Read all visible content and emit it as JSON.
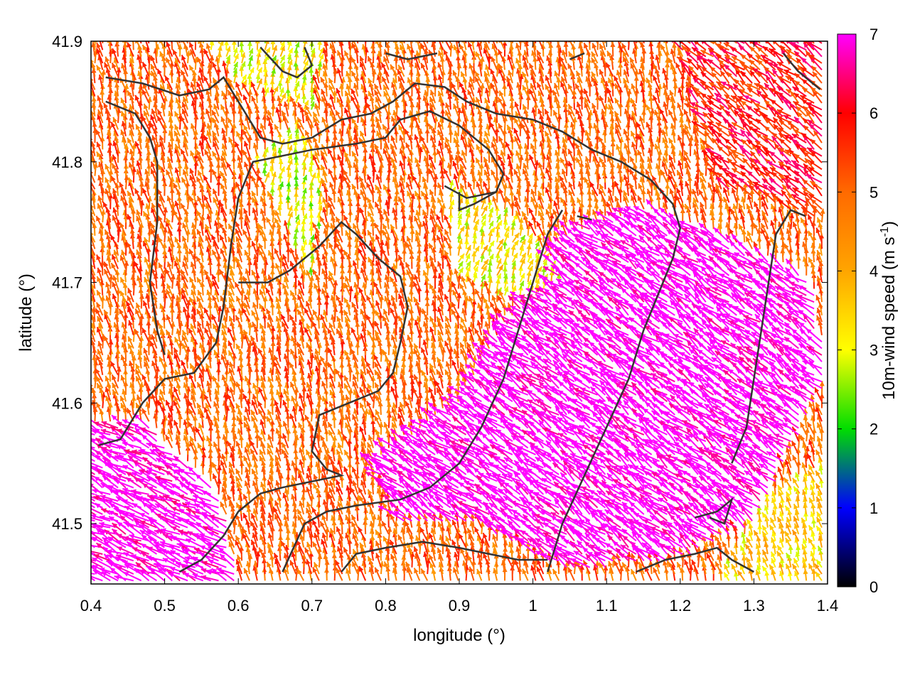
{
  "chart_data": {
    "type": "vector-field",
    "title": "",
    "xlabel": "longitude (°)",
    "ylabel": "latitude (°)",
    "colorbar_label": "10m-wind speed (m s-1)",
    "colorbar_label_parts": {
      "main": "10m-wind speed (m s",
      "sup": "-1",
      "tail": ")"
    },
    "xlim": [
      0.4,
      1.4
    ],
    "ylim": [
      41.45,
      41.9
    ],
    "colorbar_range": [
      0,
      7
    ],
    "x_ticks": [
      0.4,
      0.5,
      0.6,
      0.7,
      0.8,
      0.9,
      1.0,
      1.1,
      1.2,
      1.3,
      1.4
    ],
    "x_tick_labels": [
      "0.4",
      "0.5",
      "0.6",
      "0.7",
      "0.8",
      "0.9",
      "1",
      "1.1",
      "1.2",
      "1.3",
      "1.4"
    ],
    "y_ticks": [
      41.5,
      41.6,
      41.7,
      41.8,
      41.9
    ],
    "y_tick_labels": [
      "41.5",
      "41.6",
      "41.7",
      "41.8",
      "41.9"
    ],
    "colorbar_ticks": [
      0,
      1,
      2,
      3,
      4,
      5,
      6,
      7
    ],
    "colorbar_tick_labels": [
      "0",
      "1",
      "2",
      "3",
      "4",
      "5",
      "6",
      "7"
    ],
    "colormap": [
      {
        "value": 0,
        "color": "#000000"
      },
      {
        "value": 1,
        "color": "#0000ff"
      },
      {
        "value": 2,
        "color": "#00dd00"
      },
      {
        "value": 3,
        "color": "#ffff00"
      },
      {
        "value": 4,
        "color": "#ffa500"
      },
      {
        "value": 5,
        "color": "#ff6a00"
      },
      {
        "value": 6,
        "color": "#ff0000"
      },
      {
        "value": 7,
        "color": "#ff00ff"
      }
    ],
    "speed_regions": [
      {
        "name": "west-coast-strong",
        "points": [
          [
            0.4,
            41.45
          ],
          [
            0.6,
            41.45
          ],
          [
            0.58,
            41.52
          ],
          [
            0.48,
            41.58
          ],
          [
            0.4,
            41.58
          ]
        ],
        "speed": 7.2,
        "dir": [
          -0.9,
          0.45
        ]
      },
      {
        "name": "southeast-strong",
        "points": [
          [
            0.78,
            41.55
          ],
          [
            0.9,
            41.6
          ],
          [
            1.0,
            41.7
          ],
          [
            1.05,
            41.74
          ],
          [
            1.15,
            41.76
          ],
          [
            1.25,
            41.74
          ],
          [
            1.38,
            41.7
          ],
          [
            1.4,
            41.62
          ],
          [
            1.3,
            41.5
          ],
          [
            1.2,
            41.47
          ],
          [
            1.05,
            41.46
          ],
          [
            0.92,
            41.5
          ],
          [
            0.82,
            41.5
          ]
        ],
        "speed": 7.3,
        "dir": [
          -0.8,
          0.6
        ]
      },
      {
        "name": "central-calm",
        "points": [
          [
            0.62,
            41.8
          ],
          [
            0.68,
            41.83
          ],
          [
            0.72,
            41.78
          ],
          [
            0.7,
            41.7
          ],
          [
            0.66,
            41.75
          ]
        ],
        "speed": 3.0,
        "dir": [
          0.1,
          0.95
        ]
      },
      {
        "name": "central-yellow",
        "points": [
          [
            0.88,
            41.78
          ],
          [
            0.95,
            41.76
          ],
          [
            1.0,
            41.74
          ],
          [
            1.04,
            41.7
          ],
          [
            0.98,
            41.68
          ],
          [
            0.9,
            41.7
          ]
        ],
        "speed": 3.3,
        "dir": [
          0.3,
          0.9
        ]
      },
      {
        "name": "north-calm",
        "points": [
          [
            0.55,
            41.9
          ],
          [
            0.72,
            41.9
          ],
          [
            0.7,
            41.84
          ],
          [
            0.6,
            41.86
          ]
        ],
        "speed": 3.2,
        "dir": [
          0.2,
          0.95
        ]
      },
      {
        "name": "northeast-red",
        "points": [
          [
            1.2,
            41.9
          ],
          [
            1.4,
            41.9
          ],
          [
            1.4,
            41.75
          ],
          [
            1.25,
            41.78
          ]
        ],
        "speed": 5.8,
        "dir": [
          -0.75,
          0.65
        ]
      },
      {
        "name": "southeast-corner-calm",
        "points": [
          [
            1.25,
            41.45
          ],
          [
            1.4,
            41.45
          ],
          [
            1.4,
            41.55
          ],
          [
            1.32,
            41.52
          ]
        ],
        "speed": 3.5,
        "dir": [
          -0.3,
          0.9
        ]
      }
    ],
    "background_speed": 5.0,
    "background_dir": [
      -0.2,
      0.98
    ],
    "contours": [
      [
        [
          0.42,
          41.87
        ],
        [
          0.47,
          41.865
        ],
        [
          0.52,
          41.855
        ],
        [
          0.56,
          41.86
        ],
        [
          0.58,
          41.87
        ],
        [
          0.61,
          41.84
        ],
        [
          0.63,
          41.82
        ],
        [
          0.66,
          41.815
        ],
        [
          0.7,
          41.82
        ],
        [
          0.74,
          41.835
        ],
        [
          0.78,
          41.84
        ],
        [
          0.81,
          41.85
        ],
        [
          0.84,
          41.865
        ],
        [
          0.88,
          41.862
        ],
        [
          0.91,
          41.85
        ],
        [
          0.95,
          41.84
        ],
        [
          1.0,
          41.835
        ],
        [
          1.04,
          41.825
        ],
        [
          1.08,
          41.81
        ],
        [
          1.12,
          41.8
        ],
        [
          1.16,
          41.785
        ],
        [
          1.19,
          41.765
        ],
        [
          1.2,
          41.745
        ],
        [
          1.19,
          41.72
        ],
        [
          1.17,
          41.69
        ],
        [
          1.15,
          41.66
        ],
        [
          1.13,
          41.62
        ],
        [
          1.1,
          41.58
        ],
        [
          1.07,
          41.54
        ],
        [
          1.04,
          41.5
        ],
        [
          1.02,
          41.46
        ]
      ],
      [
        [
          0.42,
          41.85
        ],
        [
          0.46,
          41.84
        ],
        [
          0.48,
          41.82
        ],
        [
          0.49,
          41.8
        ],
        [
          0.49,
          41.75
        ],
        [
          0.48,
          41.7
        ],
        [
          0.49,
          41.66
        ],
        [
          0.5,
          41.64
        ]
      ],
      [
        [
          0.41,
          41.565
        ],
        [
          0.44,
          41.57
        ],
        [
          0.47,
          41.6
        ],
        [
          0.5,
          41.62
        ],
        [
          0.54,
          41.625
        ],
        [
          0.57,
          41.65
        ],
        [
          0.58,
          41.68
        ],
        [
          0.59,
          41.73
        ],
        [
          0.6,
          41.77
        ],
        [
          0.62,
          41.8
        ],
        [
          0.66,
          41.805
        ],
        [
          0.7,
          41.81
        ],
        [
          0.76,
          41.815
        ],
        [
          0.8,
          41.82
        ],
        [
          0.82,
          41.835
        ],
        [
          0.86,
          41.842
        ],
        [
          0.9,
          41.83
        ],
        [
          0.94,
          41.81
        ],
        [
          0.96,
          41.79
        ],
        [
          0.95,
          41.775
        ],
        [
          0.91,
          41.77
        ],
        [
          0.88,
          41.78
        ]
      ],
      [
        [
          0.6,
          41.7
        ],
        [
          0.64,
          41.7
        ],
        [
          0.67,
          41.71
        ],
        [
          0.71,
          41.73
        ],
        [
          0.74,
          41.75
        ],
        [
          0.76,
          41.74
        ],
        [
          0.79,
          41.72
        ],
        [
          0.82,
          41.705
        ],
        [
          0.83,
          41.68
        ],
        [
          0.82,
          41.65
        ],
        [
          0.81,
          41.625
        ],
        [
          0.79,
          41.61
        ],
        [
          0.75,
          41.6
        ],
        [
          0.71,
          41.59
        ],
        [
          0.7,
          41.56
        ],
        [
          0.72,
          41.545
        ],
        [
          0.74,
          41.54
        ],
        [
          0.7,
          41.535
        ],
        [
          0.66,
          41.53
        ],
        [
          0.63,
          41.525
        ],
        [
          0.6,
          41.51
        ],
        [
          0.58,
          41.49
        ],
        [
          0.55,
          41.47
        ],
        [
          0.52,
          41.46
        ]
      ],
      [
        [
          0.66,
          41.46
        ],
        [
          0.69,
          41.5
        ],
        [
          0.72,
          41.51
        ],
        [
          0.76,
          41.515
        ],
        [
          0.82,
          41.52
        ],
        [
          0.86,
          41.53
        ],
        [
          0.9,
          41.55
        ],
        [
          0.93,
          41.58
        ],
        [
          0.96,
          41.62
        ],
        [
          0.98,
          41.66
        ],
        [
          1.0,
          41.7
        ],
        [
          1.02,
          41.74
        ],
        [
          1.04,
          41.76
        ]
      ],
      [
        [
          0.74,
          41.46
        ],
        [
          0.76,
          41.475
        ],
        [
          0.8,
          41.48
        ],
        [
          0.85,
          41.485
        ],
        [
          0.9,
          41.48
        ],
        [
          0.94,
          41.475
        ],
        [
          0.98,
          41.47
        ],
        [
          1.02,
          41.47
        ]
      ],
      [
        [
          1.14,
          41.46
        ],
        [
          1.18,
          41.47
        ],
        [
          1.22,
          41.475
        ],
        [
          1.25,
          41.48
        ],
        [
          1.27,
          41.47
        ],
        [
          1.3,
          41.46
        ]
      ],
      [
        [
          1.22,
          41.505
        ],
        [
          1.25,
          41.51
        ],
        [
          1.27,
          41.52
        ],
        [
          1.26,
          41.5
        ],
        [
          1.24,
          41.505
        ]
      ],
      [
        [
          1.27,
          41.55
        ],
        [
          1.29,
          41.58
        ],
        [
          1.3,
          41.62
        ],
        [
          1.31,
          41.66
        ],
        [
          1.32,
          41.7
        ],
        [
          1.33,
          41.74
        ],
        [
          1.35,
          41.76
        ],
        [
          1.37,
          41.755
        ]
      ],
      [
        [
          1.34,
          41.89
        ],
        [
          1.36,
          41.875
        ],
        [
          1.39,
          41.86
        ]
      ],
      [
        [
          0.63,
          41.895
        ],
        [
          0.66,
          41.875
        ],
        [
          0.68,
          41.87
        ],
        [
          0.7,
          41.88
        ],
        [
          0.69,
          41.895
        ]
      ],
      [
        [
          0.8,
          41.89
        ],
        [
          0.83,
          41.885
        ],
        [
          0.87,
          41.89
        ]
      ],
      [
        [
          1.05,
          41.885
        ],
        [
          1.07,
          41.89
        ]
      ],
      [
        [
          1.06,
          41.755
        ],
        [
          1.08,
          41.752
        ]
      ],
      [
        [
          0.95,
          41.775
        ],
        [
          0.92,
          41.765
        ],
        [
          0.9,
          41.76
        ],
        [
          0.9,
          41.775
        ]
      ]
    ]
  }
}
